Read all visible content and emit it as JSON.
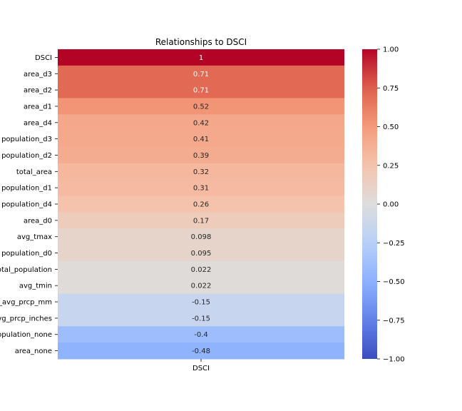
{
  "chart_data": {
    "type": "heatmap",
    "title": "Relationships to DSCI",
    "columns": [
      "DSCI"
    ],
    "rows": [
      "DSCI",
      "area_d3",
      "area_d2",
      "area_d1",
      "area_d4",
      "population_d3",
      "population_d2",
      "total_area",
      "population_d1",
      "population_d4",
      "area_d0",
      "avg_tmax",
      "population_d0",
      "total_population",
      "avg_tmin",
      "avg_avg_prcp_mm",
      "avg_avg_prcp_inches",
      "population_none",
      "area_none"
    ],
    "values": [
      1,
      0.71,
      0.71,
      0.52,
      0.42,
      0.41,
      0.39,
      0.32,
      0.31,
      0.26,
      0.17,
      0.098,
      0.095,
      0.022,
      0.022,
      -0.15,
      -0.15,
      -0.4,
      -0.48
    ],
    "value_labels": [
      "1",
      "0.71",
      "0.71",
      "0.52",
      "0.42",
      "0.41",
      "0.39",
      "0.32",
      "0.31",
      "0.26",
      "0.17",
      "0.098",
      "0.095",
      "0.022",
      "0.022",
      "-0.15",
      "-0.15",
      "-0.4",
      "-0.48"
    ],
    "colormap": "coolwarm",
    "vmin": -1.0,
    "vmax": 1.0,
    "colorbar_ticks": [
      1.0,
      0.75,
      0.5,
      0.25,
      0.0,
      -0.25,
      -0.5,
      -0.75,
      -1.0
    ],
    "colorbar_tick_labels": [
      "1.00",
      "0.75",
      "0.50",
      "0.25",
      "0.00",
      "−0.25",
      "−0.50",
      "−0.75",
      "−1.00"
    ]
  }
}
